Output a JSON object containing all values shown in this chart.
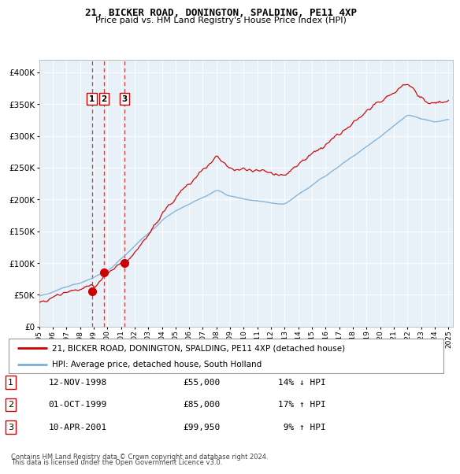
{
  "title": "21, BICKER ROAD, DONINGTON, SPALDING, PE11 4XP",
  "subtitle": "Price paid vs. HM Land Registry's House Price Index (HPI)",
  "legend_line1": "21, BICKER ROAD, DONINGTON, SPALDING, PE11 4XP (detached house)",
  "legend_line2": "HPI: Average price, detached house, South Holland",
  "sales": [
    {
      "label": "1",
      "date": "12-NOV-1998",
      "price": 55000,
      "hpi_pct": "14% ↓ HPI",
      "year": 1998.87
    },
    {
      "label": "2",
      "date": "01-OCT-1999",
      "price": 85000,
      "hpi_pct": "17% ↑ HPI",
      "year": 1999.75
    },
    {
      "label": "3",
      "date": "10-APR-2001",
      "price": 99950,
      "hpi_pct": "9% ↑ HPI",
      "year": 2001.27
    }
  ],
  "footer_line1": "Contains HM Land Registry data © Crown copyright and database right 2024.",
  "footer_line2": "This data is licensed under the Open Government Licence v3.0.",
  "ylim": [
    0,
    420000
  ],
  "xlim": [
    1995.0,
    2025.3
  ],
  "red_color": "#cc0000",
  "blue_color": "#7ab0d4",
  "chart_bg": "#e8f0f8",
  "grid_color": "#ffffff"
}
